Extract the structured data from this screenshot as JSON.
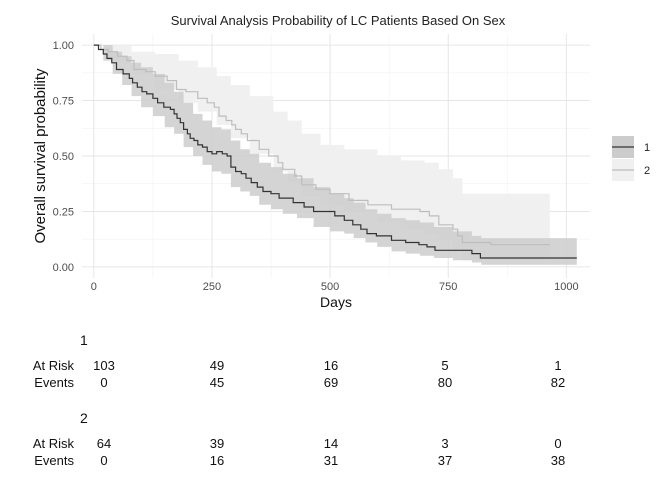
{
  "chart_data": {
    "type": "line",
    "title": "Survival Analysis Probability of LC Patients Based On Sex",
    "xlabel": "Days",
    "ylabel": "Overall survival probability",
    "xlim": [
      -25,
      1050
    ],
    "ylim": [
      -0.05,
      1.05
    ],
    "x_ticks": [
      0,
      250,
      500,
      750,
      1000
    ],
    "x_tick_labels": [
      "0",
      "250",
      "500",
      "750",
      "1000"
    ],
    "y_ticks": [
      0,
      0.25,
      0.5,
      0.75,
      1.0
    ],
    "y_tick_labels": [
      "0.00",
      "0.25",
      "0.50",
      "0.75",
      "1.00"
    ],
    "grid": true,
    "legend_position": "right",
    "series": [
      {
        "name": "1",
        "color": "#333333",
        "band_color": "#cccccc",
        "steps": [
          [
            0,
            1.0
          ],
          [
            10,
            0.98
          ],
          [
            20,
            0.96
          ],
          [
            28,
            0.94
          ],
          [
            38,
            0.92
          ],
          [
            48,
            0.89
          ],
          [
            62,
            0.87
          ],
          [
            75,
            0.85
          ],
          [
            82,
            0.83
          ],
          [
            92,
            0.81
          ],
          [
            102,
            0.79
          ],
          [
            112,
            0.78
          ],
          [
            125,
            0.76
          ],
          [
            135,
            0.74
          ],
          [
            148,
            0.72
          ],
          [
            162,
            0.71
          ],
          [
            170,
            0.69
          ],
          [
            176,
            0.67
          ],
          [
            183,
            0.65
          ],
          [
            190,
            0.62
          ],
          [
            198,
            0.6
          ],
          [
            204,
            0.58
          ],
          [
            212,
            0.57
          ],
          [
            220,
            0.55
          ],
          [
            230,
            0.54
          ],
          [
            240,
            0.52
          ],
          [
            250,
            0.51
          ],
          [
            260,
            0.52
          ],
          [
            272,
            0.51
          ],
          [
            282,
            0.5
          ],
          [
            290,
            0.45
          ],
          [
            300,
            0.43
          ],
          [
            312,
            0.42
          ],
          [
            322,
            0.4
          ],
          [
            333,
            0.38
          ],
          [
            346,
            0.36
          ],
          [
            358,
            0.34
          ],
          [
            375,
            0.33
          ],
          [
            392,
            0.31
          ],
          [
            422,
            0.29
          ],
          [
            445,
            0.27
          ],
          [
            465,
            0.25
          ],
          [
            510,
            0.23
          ],
          [
            530,
            0.21
          ],
          [
            548,
            0.19
          ],
          [
            565,
            0.17
          ],
          [
            578,
            0.15
          ],
          [
            598,
            0.14
          ],
          [
            630,
            0.12
          ],
          [
            660,
            0.11
          ],
          [
            688,
            0.1
          ],
          [
            705,
            0.09
          ],
          [
            722,
            0.075
          ],
          [
            800,
            0.06
          ],
          [
            818,
            0.04
          ],
          [
            1000,
            0.04
          ]
        ],
        "end_x": 1022,
        "ci_upper": [
          [
            0,
            1.0
          ],
          [
            20,
            1.0
          ],
          [
            40,
            0.97
          ],
          [
            60,
            0.95
          ],
          [
            80,
            0.92
          ],
          [
            100,
            0.9
          ],
          [
            125,
            0.87
          ],
          [
            150,
            0.83
          ],
          [
            170,
            0.79
          ],
          [
            190,
            0.74
          ],
          [
            210,
            0.69
          ],
          [
            230,
            0.66
          ],
          [
            250,
            0.63
          ],
          [
            270,
            0.62
          ],
          [
            290,
            0.57
          ],
          [
            310,
            0.53
          ],
          [
            330,
            0.51
          ],
          [
            350,
            0.47
          ],
          [
            375,
            0.45
          ],
          [
            400,
            0.42
          ],
          [
            430,
            0.4
          ],
          [
            465,
            0.36
          ],
          [
            500,
            0.33
          ],
          [
            530,
            0.31
          ],
          [
            550,
            0.29
          ],
          [
            575,
            0.26
          ],
          [
            600,
            0.24
          ],
          [
            630,
            0.22
          ],
          [
            660,
            0.21
          ],
          [
            690,
            0.2
          ],
          [
            720,
            0.18
          ],
          [
            760,
            0.16
          ],
          [
            800,
            0.14
          ],
          [
            820,
            0.13
          ],
          [
            1022,
            0.13
          ]
        ],
        "ci_lower": [
          [
            0,
            1.0
          ],
          [
            20,
            0.93
          ],
          [
            40,
            0.87
          ],
          [
            60,
            0.82
          ],
          [
            80,
            0.77
          ],
          [
            100,
            0.72
          ],
          [
            125,
            0.68
          ],
          [
            150,
            0.63
          ],
          [
            170,
            0.6
          ],
          [
            190,
            0.54
          ],
          [
            210,
            0.5
          ],
          [
            230,
            0.46
          ],
          [
            250,
            0.43
          ],
          [
            270,
            0.42
          ],
          [
            290,
            0.36
          ],
          [
            310,
            0.34
          ],
          [
            330,
            0.32
          ],
          [
            350,
            0.28
          ],
          [
            375,
            0.26
          ],
          [
            400,
            0.24
          ],
          [
            430,
            0.22
          ],
          [
            465,
            0.18
          ],
          [
            500,
            0.16
          ],
          [
            530,
            0.15
          ],
          [
            550,
            0.13
          ],
          [
            575,
            0.11
          ],
          [
            600,
            0.09
          ],
          [
            630,
            0.07
          ],
          [
            660,
            0.06
          ],
          [
            690,
            0.05
          ],
          [
            720,
            0.04
          ],
          [
            760,
            0.03
          ],
          [
            800,
            0.02
          ],
          [
            820,
            0.01
          ],
          [
            1022,
            0.01
          ]
        ]
      },
      {
        "name": "2",
        "color": "#bdbdbd",
        "band_color": "#f0f0f0",
        "steps": [
          [
            0,
            1.0
          ],
          [
            15,
            0.98
          ],
          [
            30,
            0.97
          ],
          [
            50,
            0.95
          ],
          [
            70,
            0.93
          ],
          [
            85,
            0.89
          ],
          [
            110,
            0.88
          ],
          [
            130,
            0.86
          ],
          [
            155,
            0.84
          ],
          [
            175,
            0.8
          ],
          [
            195,
            0.79
          ],
          [
            220,
            0.76
          ],
          [
            240,
            0.74
          ],
          [
            255,
            0.72
          ],
          [
            265,
            0.68
          ],
          [
            280,
            0.66
          ],
          [
            292,
            0.64
          ],
          [
            300,
            0.62
          ],
          [
            312,
            0.6
          ],
          [
            325,
            0.57
          ],
          [
            350,
            0.53
          ],
          [
            370,
            0.5
          ],
          [
            390,
            0.47
          ],
          [
            400,
            0.44
          ],
          [
            425,
            0.41
          ],
          [
            440,
            0.37
          ],
          [
            470,
            0.35
          ],
          [
            500,
            0.33
          ],
          [
            540,
            0.3
          ],
          [
            580,
            0.28
          ],
          [
            630,
            0.26
          ],
          [
            690,
            0.25
          ],
          [
            710,
            0.23
          ],
          [
            730,
            0.19
          ],
          [
            760,
            0.17
          ],
          [
            770,
            0.14
          ],
          [
            780,
            0.11
          ],
          [
            840,
            0.1
          ],
          [
            960,
            0.1
          ]
        ],
        "end_x": 965,
        "ci_upper": [
          [
            0,
            1.0
          ],
          [
            30,
            1.0
          ],
          [
            80,
            0.97
          ],
          [
            130,
            0.96
          ],
          [
            180,
            0.93
          ],
          [
            220,
            0.9
          ],
          [
            260,
            0.86
          ],
          [
            290,
            0.82
          ],
          [
            330,
            0.77
          ],
          [
            380,
            0.7
          ],
          [
            410,
            0.66
          ],
          [
            440,
            0.6
          ],
          [
            480,
            0.55
          ],
          [
            530,
            0.53
          ],
          [
            600,
            0.5
          ],
          [
            650,
            0.48
          ],
          [
            700,
            0.47
          ],
          [
            730,
            0.44
          ],
          [
            760,
            0.4
          ],
          [
            780,
            0.33
          ],
          [
            965,
            0.33
          ]
        ],
        "ci_lower": [
          [
            0,
            1.0
          ],
          [
            30,
            0.93
          ],
          [
            80,
            0.87
          ],
          [
            130,
            0.8
          ],
          [
            180,
            0.74
          ],
          [
            220,
            0.7
          ],
          [
            260,
            0.64
          ],
          [
            290,
            0.58
          ],
          [
            330,
            0.51
          ],
          [
            380,
            0.43
          ],
          [
            410,
            0.38
          ],
          [
            440,
            0.32
          ],
          [
            480,
            0.28
          ],
          [
            530,
            0.25
          ],
          [
            600,
            0.2
          ],
          [
            650,
            0.17
          ],
          [
            700,
            0.15
          ],
          [
            730,
            0.12
          ],
          [
            760,
            0.07
          ],
          [
            780,
            0.03
          ],
          [
            965,
            0.03
          ]
        ]
      }
    ]
  },
  "risk_table": {
    "time_points": [
      0,
      250,
      500,
      750,
      1000
    ],
    "row_labels": {
      "at_risk": "At Risk",
      "events": "Events"
    },
    "strata": [
      {
        "name": "1",
        "at_risk": [
          "103",
          "49",
          "16",
          "5",
          "1"
        ],
        "events": [
          "0",
          "45",
          "69",
          "80",
          "82"
        ]
      },
      {
        "name": "2",
        "at_risk": [
          "64",
          "39",
          "14",
          "3",
          "0"
        ],
        "events": [
          "0",
          "16",
          "31",
          "37",
          "38"
        ]
      }
    ]
  }
}
